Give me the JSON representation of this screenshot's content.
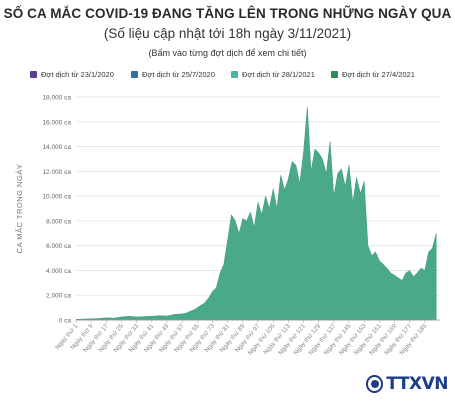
{
  "header": {
    "title": "SỐ CA MẮC COVID-19 ĐANG TĂNG LÊN TRONG NHỮNG NGÀY QUA",
    "subtitle": "(Số liệu cập nhật tới 18h ngày 3/11/2021)",
    "note": "(Bấm vào từng đợt dịch để xem chi tiết)"
  },
  "legend": [
    {
      "label": "Đợt dịch từ 23/1/2020",
      "color": "#5b3f8c"
    },
    {
      "label": "Đợt dịch từ 25/7/2020",
      "color": "#2f6fa6"
    },
    {
      "label": "Đợt dịch từ 28/1/2021",
      "color": "#47b3a5"
    },
    {
      "label": "Đợt dịch từ 27/4/2021",
      "color": "#2e8b57"
    }
  ],
  "logo": {
    "text": "TTXVN"
  },
  "chart_data": {
    "type": "area",
    "title": "SỐ CA MẮC COVID-19 ĐANG TĂNG LÊN TRONG NHỮNG NGÀY QUA",
    "ylabel": "CA MẮC TRONG NGÀY",
    "xlabel": "",
    "ylim": [
      0,
      18000
    ],
    "yticks": [
      "0 ca",
      "2.000 ca",
      "4.000 ca",
      "6.000 ca",
      "8.000 ca",
      "10.000 ca",
      "12.000 ca",
      "14.000 ca",
      "16.000 ca",
      "18.000 ca"
    ],
    "xticks": [
      "Ngày thứ 1",
      "Ngày thứ 9",
      "Ngày thứ 17",
      "Ngày thứ 25",
      "Ngày thứ 33",
      "Ngày thứ 41",
      "Ngày thứ 49",
      "Ngày thứ 57",
      "Ngày thứ 65",
      "Ngày thứ 73",
      "Ngày thứ 81",
      "Ngày thứ 89",
      "Ngày thứ 97",
      "Ngày thứ 105",
      "Ngày thứ 113",
      "Ngày thứ 121",
      "Ngày thứ 129",
      "Ngày thứ 137",
      "Ngày thứ 145",
      "Ngày thứ 153",
      "Ngày thứ 161",
      "Ngày thứ 169",
      "Ngày thứ 177",
      "Ngày thứ 185"
    ],
    "grid": true,
    "legend_position": "top",
    "color": "#4aa98a",
    "series": [
      {
        "name": "Đợt dịch từ 27/4/2021",
        "x": [
          1,
          5,
          9,
          13,
          17,
          21,
          25,
          29,
          33,
          37,
          41,
          45,
          49,
          53,
          57,
          59,
          61,
          63,
          65,
          67,
          69,
          71,
          73,
          75,
          77,
          79,
          81,
          83,
          85,
          87,
          89,
          91,
          93,
          95,
          97,
          99,
          101,
          103,
          105,
          107,
          109,
          111,
          113,
          115,
          117,
          119,
          121,
          123,
          125,
          127,
          129,
          131,
          133,
          135,
          137,
          139,
          141,
          143,
          145,
          147,
          149,
          151,
          153,
          155,
          157,
          159,
          161,
          163,
          165,
          167,
          169,
          171,
          173,
          175,
          177,
          179,
          181,
          183,
          185,
          187,
          189,
          191
        ],
        "values": [
          50,
          80,
          100,
          120,
          180,
          150,
          250,
          300,
          250,
          280,
          300,
          350,
          320,
          450,
          500,
          550,
          700,
          800,
          1000,
          1200,
          1400,
          1800,
          2300,
          2600,
          3800,
          4500,
          6500,
          8500,
          8000,
          7000,
          8200,
          8000,
          8700,
          7500,
          9500,
          8500,
          10000,
          9000,
          10600,
          9000,
          11700,
          10500,
          11400,
          12800,
          12500,
          11000,
          13500,
          17200,
          12000,
          13800,
          13500,
          13000,
          11800,
          14400,
          10000,
          11800,
          12200,
          10800,
          12500,
          9500,
          11500,
          10200,
          11200,
          6000,
          5200,
          5500,
          4800,
          4500,
          4200,
          3800,
          3600,
          3400,
          3200,
          3800,
          4000,
          3500,
          3800,
          4200,
          4000,
          5500,
          5800,
          7000
        ]
      }
    ]
  }
}
